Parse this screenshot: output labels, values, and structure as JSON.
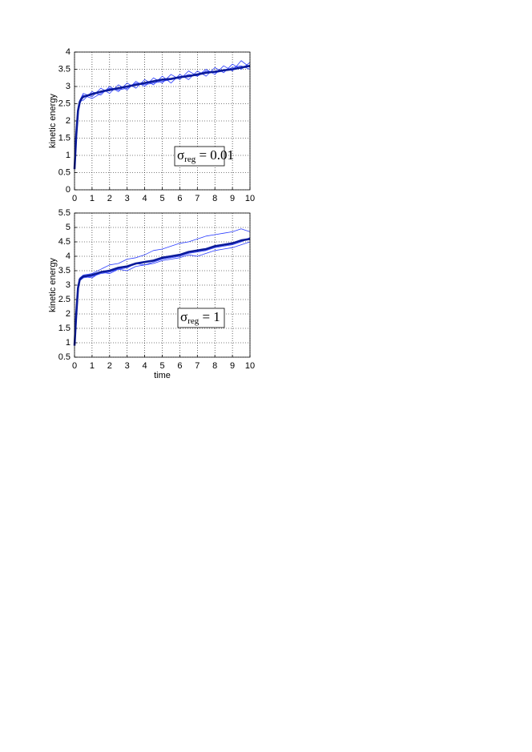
{
  "chart_data": [
    {
      "type": "line",
      "ylabel": "kinetic  energy",
      "annotation": [
        "σ",
        "reg",
        " = 0.01"
      ],
      "x": [
        0,
        0.1,
        0.2,
        0.3,
        0.4,
        0.5,
        1,
        1.5,
        2,
        2.5,
        3,
        3.5,
        4,
        4.5,
        5,
        5.5,
        6,
        6.5,
        7,
        7.5,
        8,
        8.5,
        9,
        9.5,
        10
      ],
      "series": [
        {
          "color": "#2a3cff",
          "linewidth": 0.8,
          "values": [
            0.6,
            1.7,
            2.4,
            2.6,
            2.7,
            2.8,
            2.7,
            2.95,
            2.8,
            3.05,
            2.9,
            3.15,
            3.0,
            3.25,
            3.1,
            3.35,
            3.2,
            3.45,
            3.3,
            3.5,
            3.35,
            3.6,
            3.45,
            3.75,
            3.55
          ]
        },
        {
          "color": "#2a3cff",
          "linewidth": 0.8,
          "values": [
            0.6,
            1.5,
            2.2,
            2.5,
            2.6,
            2.6,
            2.85,
            2.75,
            3.0,
            2.85,
            3.1,
            2.95,
            3.2,
            3.05,
            3.3,
            3.1,
            3.35,
            3.2,
            3.45,
            3.3,
            3.55,
            3.4,
            3.65,
            3.5,
            3.7
          ]
        },
        {
          "color": "#2a3cff",
          "linewidth": 0.8,
          "values": [
            0.6,
            1.6,
            2.3,
            2.55,
            2.7,
            2.75,
            2.65,
            2.8,
            2.95,
            2.9,
            2.95,
            3.1,
            3.05,
            3.1,
            3.15,
            3.2,
            3.25,
            3.35,
            3.3,
            3.45,
            3.4,
            3.45,
            3.55,
            3.6,
            3.5
          ]
        },
        {
          "color": "#0a1a9a",
          "linewidth": 2.6,
          "values": [
            0.6,
            1.6,
            2.3,
            2.55,
            2.65,
            2.7,
            2.78,
            2.85,
            2.9,
            2.95,
            3.0,
            3.05,
            3.1,
            3.15,
            3.2,
            3.22,
            3.27,
            3.3,
            3.35,
            3.4,
            3.43,
            3.47,
            3.5,
            3.55,
            3.6
          ]
        }
      ],
      "xlim": [
        0,
        10
      ],
      "xticks": [
        0,
        1,
        2,
        3,
        4,
        5,
        6,
        7,
        8,
        9,
        10
      ],
      "ylim": [
        0,
        4
      ],
      "yticks": [
        0,
        0.5,
        1,
        1.5,
        2,
        2.5,
        3,
        3.5,
        4
      ],
      "grid": true
    },
    {
      "type": "line",
      "ylabel": "kinetic  energy",
      "xlabel": "time",
      "annotation": [
        "σ",
        "reg",
        " = 1"
      ],
      "x": [
        0,
        0.1,
        0.2,
        0.3,
        0.4,
        0.5,
        1,
        1.5,
        2,
        2.5,
        3,
        3.5,
        4,
        4.5,
        5,
        5.5,
        6,
        6.5,
        7,
        7.5,
        8,
        8.5,
        9,
        9.5,
        10
      ],
      "series": [
        {
          "color": "#2a3cff",
          "linewidth": 0.8,
          "values": [
            0.9,
            2.1,
            3.0,
            3.25,
            3.3,
            3.35,
            3.4,
            3.55,
            3.7,
            3.75,
            3.9,
            3.95,
            4.05,
            4.2,
            4.25,
            4.35,
            4.45,
            4.5,
            4.6,
            4.7,
            4.75,
            4.8,
            4.85,
            4.95,
            4.85
          ]
        },
        {
          "color": "#2a3cff",
          "linewidth": 0.8,
          "values": [
            0.9,
            1.9,
            2.8,
            3.15,
            3.2,
            3.25,
            3.3,
            3.4,
            3.45,
            3.55,
            3.5,
            3.65,
            3.7,
            3.75,
            3.85,
            3.9,
            3.95,
            4.05,
            4.0,
            4.1,
            4.2,
            4.25,
            4.3,
            4.4,
            4.5
          ]
        },
        {
          "color": "#2a3cff",
          "linewidth": 0.8,
          "values": [
            0.9,
            2.0,
            2.9,
            3.2,
            3.25,
            3.3,
            3.25,
            3.45,
            3.4,
            3.55,
            3.6,
            3.75,
            3.7,
            3.8,
            3.9,
            3.95,
            4.0,
            4.1,
            4.15,
            4.2,
            4.3,
            4.35,
            4.4,
            4.5,
            4.65
          ]
        },
        {
          "color": "#0a1a9a",
          "linewidth": 2.6,
          "values": [
            0.9,
            2.0,
            2.9,
            3.2,
            3.25,
            3.3,
            3.35,
            3.45,
            3.5,
            3.6,
            3.65,
            3.75,
            3.8,
            3.85,
            3.95,
            4.0,
            4.05,
            4.15,
            4.2,
            4.25,
            4.35,
            4.4,
            4.45,
            4.55,
            4.6
          ]
        }
      ],
      "xlim": [
        0,
        10
      ],
      "xticks": [
        0,
        1,
        2,
        3,
        4,
        5,
        6,
        7,
        8,
        9,
        10
      ],
      "ylim": [
        0.5,
        5.5
      ],
      "yticks": [
        0.5,
        1,
        1.5,
        2,
        2.5,
        3,
        3.5,
        4,
        4.5,
        5,
        5.5
      ],
      "grid": true
    }
  ]
}
